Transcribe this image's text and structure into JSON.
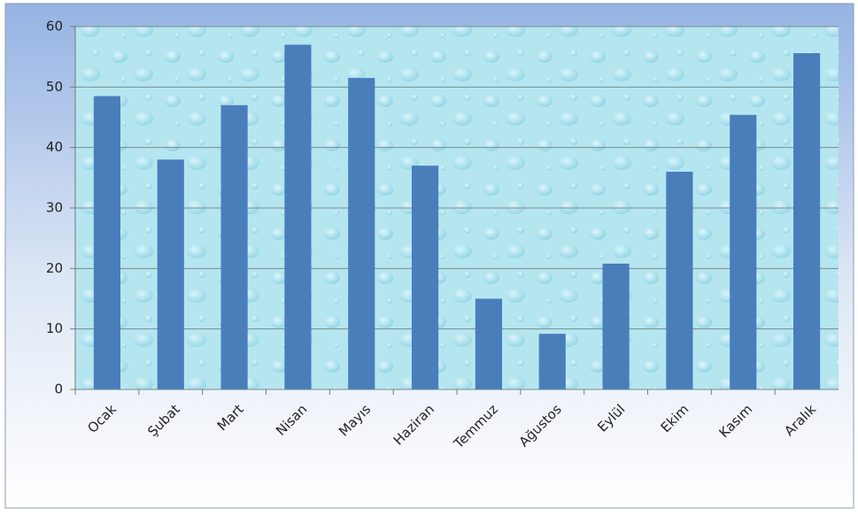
{
  "chart_data": {
    "type": "bar",
    "categories": [
      "Ocak",
      "Şubat",
      "Mart",
      "Nisan",
      "Mayıs",
      "Haziran",
      "Temmuz",
      "Ağustos",
      "Eylül",
      "Ekim",
      "Kasım",
      "Aralık"
    ],
    "values": [
      48.5,
      38,
      47,
      57,
      51.5,
      37,
      15,
      9.2,
      20.8,
      36,
      45.4,
      55.6
    ],
    "color": "#4a7ebb",
    "ylim": [
      0,
      60
    ],
    "yticks": [
      0,
      10,
      20,
      30,
      40,
      50,
      60
    ],
    "grid": true
  }
}
